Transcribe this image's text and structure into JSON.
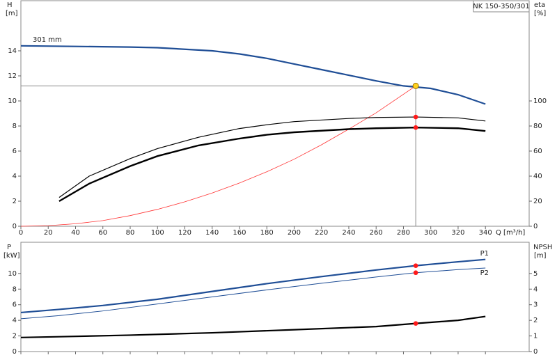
{
  "chart_data": [
    {
      "type": "line",
      "title": "NK 150-350/301",
      "ylabel": "H",
      "ylabel_unit": "[m]",
      "y2label": "eta",
      "y2label_unit": "[%]",
      "xlabel": "Q [m³/h]",
      "xlim": [
        0,
        372
      ],
      "xticks": [
        0,
        20,
        40,
        60,
        80,
        100,
        120,
        140,
        160,
        180,
        200,
        220,
        240,
        260,
        280,
        300,
        320,
        340
      ],
      "ylim": [
        0,
        18
      ],
      "yticks": [
        0,
        2,
        4,
        6,
        8,
        10,
        12,
        14
      ],
      "y2lim": [
        0,
        180
      ],
      "y2ticks": [
        0,
        20,
        40,
        60,
        80,
        100
      ],
      "series": [
        {
          "name": "301 mm",
          "color": "#1f4e96",
          "width": 2.2,
          "x": [
            0,
            40,
            80,
            100,
            140,
            160,
            180,
            200,
            220,
            240,
            260,
            280,
            300,
            320,
            340
          ],
          "values": [
            14.4,
            14.35,
            14.3,
            14.25,
            14.0,
            13.75,
            13.4,
            12.95,
            12.5,
            12.05,
            11.6,
            11.2,
            11.0,
            10.5,
            9.75
          ]
        },
        {
          "color": "#ff3333",
          "width": 0.8,
          "x": [
            0,
            20,
            40,
            60,
            80,
            100,
            120,
            140,
            160,
            180,
            200,
            220,
            240,
            260,
            289
          ],
          "values": [
            0,
            0.05,
            0.2,
            0.45,
            0.85,
            1.35,
            1.95,
            2.65,
            3.45,
            4.35,
            5.35,
            6.5,
            7.75,
            9.05,
            11.2
          ]
        },
        {
          "color": "#000000",
          "width": 1.2,
          "axis": "y2",
          "x": [
            28,
            50,
            80,
            100,
            130,
            160,
            180,
            200,
            240,
            260,
            289,
            320,
            340
          ],
          "values": [
            23,
            40,
            54,
            62,
            71,
            78,
            81,
            83.5,
            86,
            86.8,
            87.2,
            86.5,
            84
          ]
        },
        {
          "color": "#000000",
          "width": 2.4,
          "axis": "y2",
          "x": [
            28,
            50,
            80,
            100,
            130,
            160,
            180,
            200,
            240,
            260,
            289,
            320,
            340
          ],
          "values": [
            20,
            34,
            48,
            56,
            64.5,
            70,
            73,
            75,
            77.5,
            78.2,
            78.8,
            78.2,
            76
          ]
        }
      ],
      "markers": [
        {
          "x": 289,
          "y": 11.2,
          "color": "#ffd21f"
        },
        {
          "x": 289,
          "y": 87.2,
          "axis": "y2",
          "color": "#ff1a1a"
        },
        {
          "x": 289,
          "y": 78.8,
          "axis": "y2",
          "color": "#ff1a1a"
        }
      ]
    },
    {
      "type": "line",
      "ylabel": "P",
      "ylabel_unit": "[kW]",
      "y2label": "NPSH",
      "y2label_unit": "[m]",
      "xlim": [
        0,
        372
      ],
      "ylim": [
        0,
        14
      ],
      "yticks": [
        0,
        2,
        4,
        6,
        8,
        10
      ],
      "y2lim": [
        0,
        7
      ],
      "y2ticks": [
        0,
        1,
        2,
        3,
        4,
        5
      ],
      "series": [
        {
          "name": "P1",
          "color": "#1f4e96",
          "width": 2.2,
          "x": [
            0,
            28,
            60,
            100,
            140,
            180,
            220,
            260,
            289,
            320,
            340
          ],
          "values": [
            5.0,
            5.4,
            5.9,
            6.7,
            7.7,
            8.7,
            9.6,
            10.45,
            11.0,
            11.5,
            11.8
          ]
        },
        {
          "name": "P2",
          "color": "#1f4e96",
          "width": 1.0,
          "x": [
            0,
            28,
            60,
            100,
            140,
            180,
            220,
            260,
            289,
            320,
            340
          ],
          "values": [
            4.2,
            4.6,
            5.2,
            6.1,
            7.0,
            7.9,
            8.75,
            9.55,
            10.1,
            10.5,
            10.7
          ]
        },
        {
          "color": "#000000",
          "width": 2.2,
          "axis": "y2",
          "x": [
            0,
            28,
            80,
            140,
            200,
            260,
            289,
            320,
            340
          ],
          "values": [
            0.9,
            0.95,
            1.05,
            1.2,
            1.4,
            1.6,
            1.8,
            2.0,
            2.25
          ]
        }
      ],
      "markers": [
        {
          "x": 289,
          "y": 11.0,
          "color": "#ff1a1a"
        },
        {
          "x": 289,
          "y": 10.1,
          "color": "#ff1a1a"
        },
        {
          "x": 289,
          "y": 1.8,
          "axis": "y2",
          "color": "#ff1a1a"
        }
      ]
    }
  ]
}
